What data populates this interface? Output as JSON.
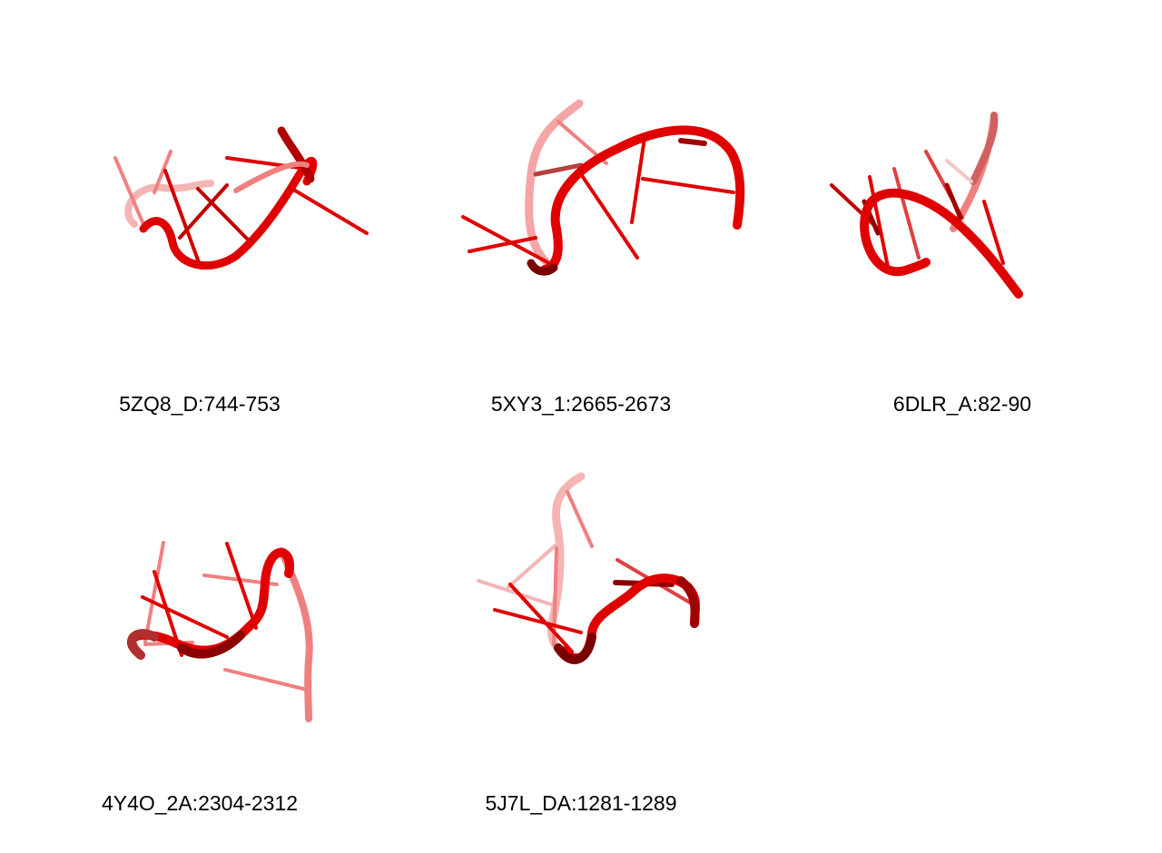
{
  "colors": {
    "strand": "#e00000",
    "strand_dark": "#8a0000",
    "strand_light": "#f08080",
    "strand_faded": "#f5b5b5"
  },
  "structures": [
    {
      "label": "5ZQ8_D:744-753"
    },
    {
      "label": "5XY3_1:2665-2673"
    },
    {
      "label": "6DLR_A:82-90"
    },
    {
      "label": "4Y4O_2A:2304-2312"
    },
    {
      "label": "5J7L_DA:1281-1289"
    }
  ]
}
